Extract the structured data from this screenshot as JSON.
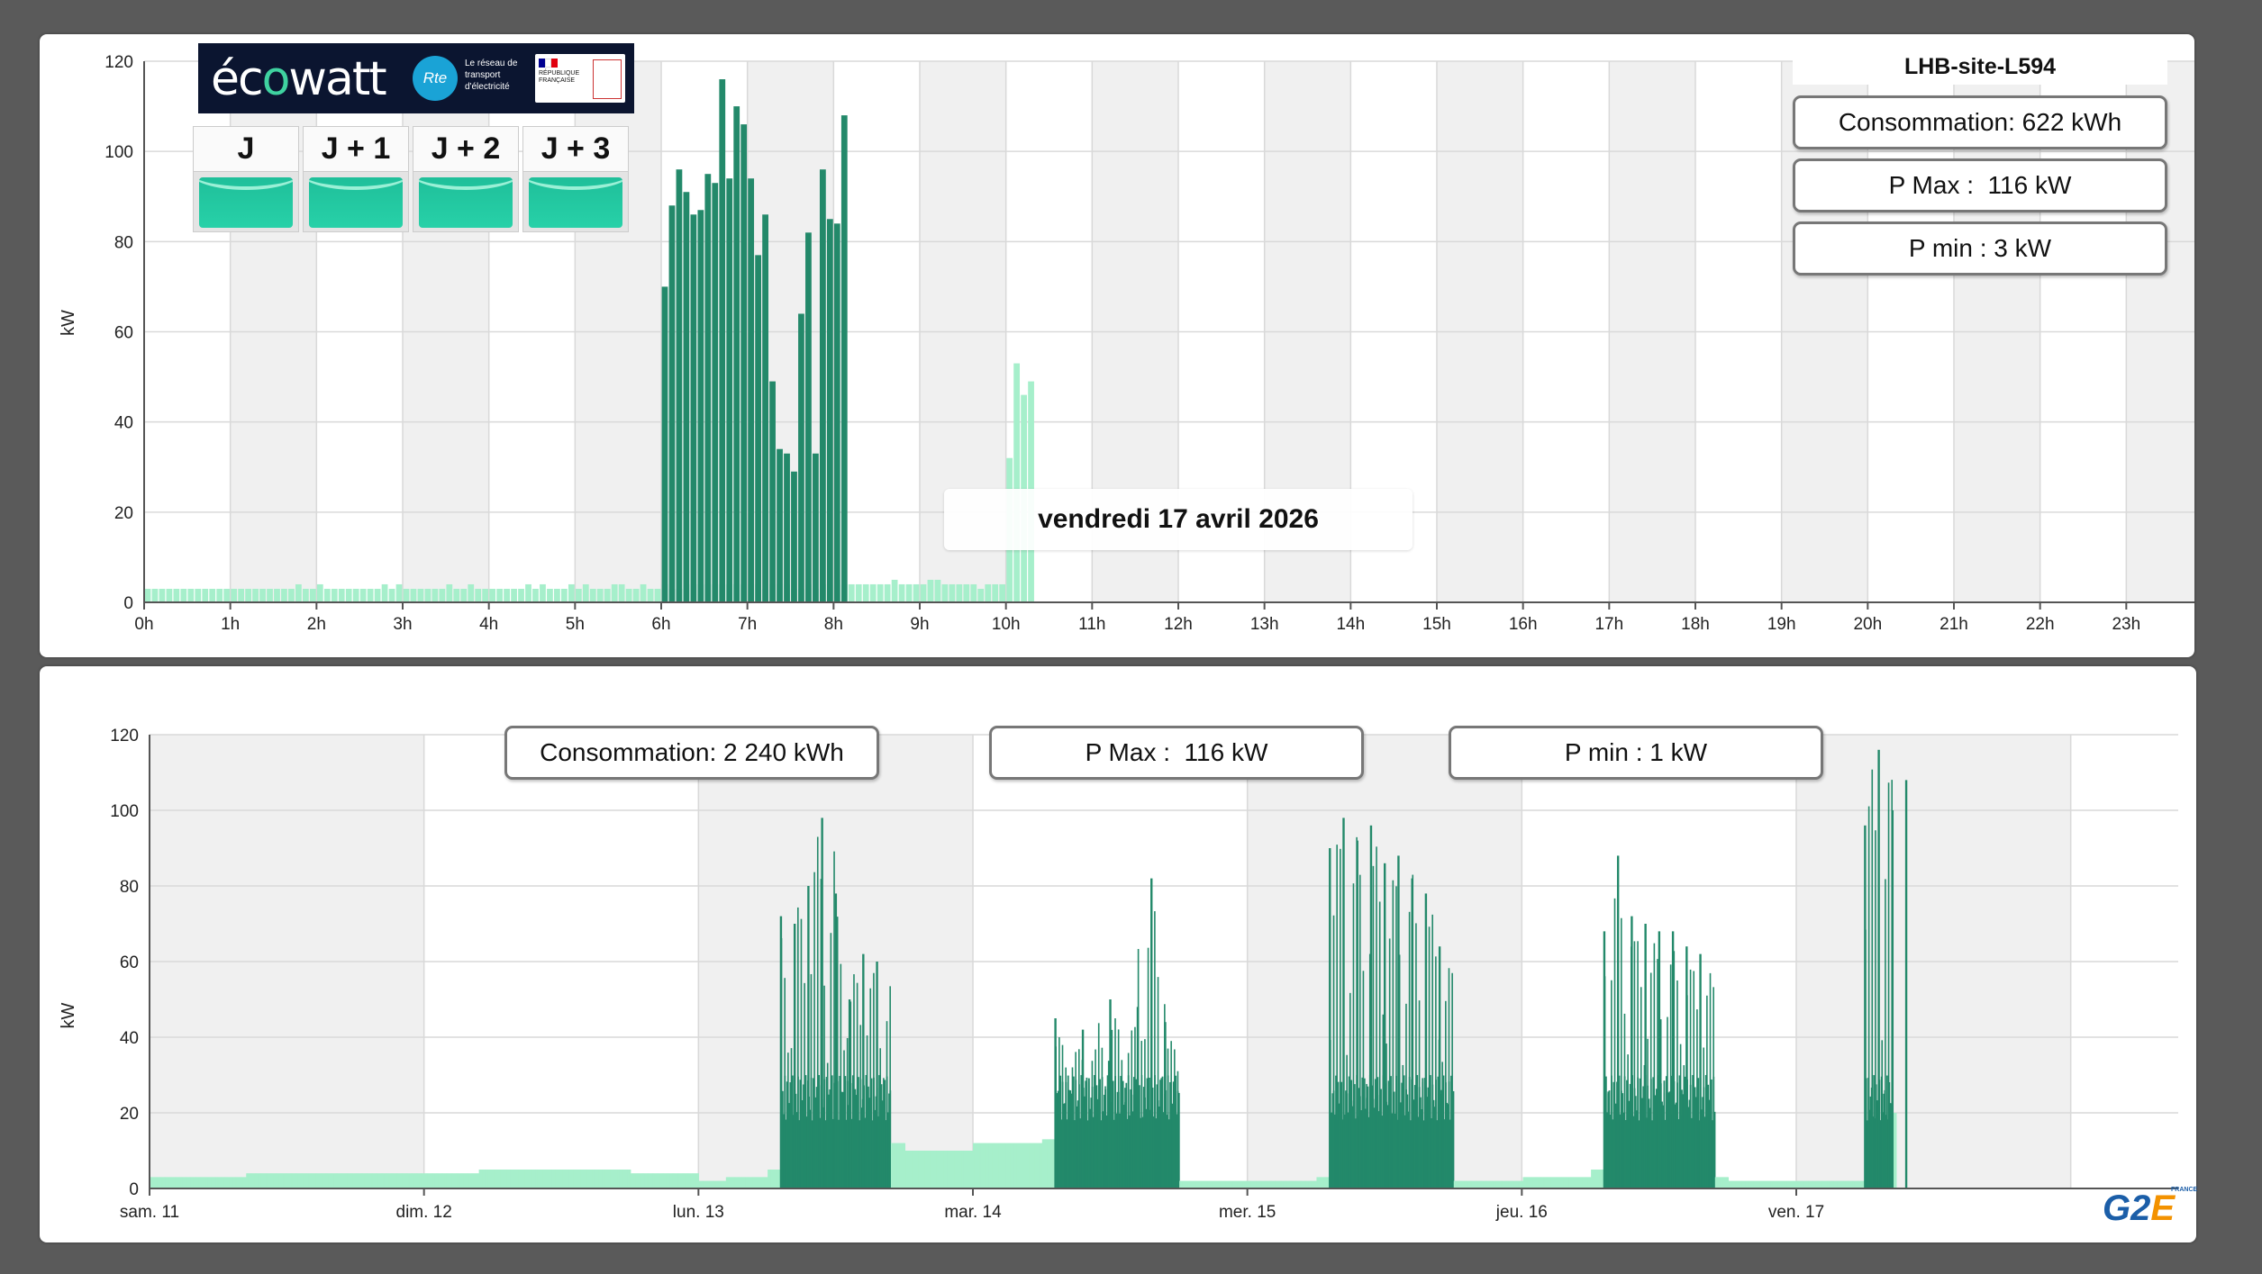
{
  "chart_data": [
    {
      "type": "bar",
      "ylabel": "kW",
      "xlabel": "",
      "ylim": [
        0,
        120
      ],
      "yticks": [
        "0",
        "20",
        "40",
        "60",
        "80",
        "100",
        "120"
      ],
      "xticks": [
        "0h",
        "1h",
        "2h",
        "3h",
        "4h",
        "5h",
        "6h",
        "7h",
        "8h",
        "9h",
        "10h",
        "11h",
        "12h",
        "13h",
        "14h",
        "15h",
        "16h",
        "17h",
        "18h",
        "19h",
        "20h",
        "21h",
        "22h",
        "23h",
        "0h"
      ],
      "interval_minutes": 5,
      "grid": true,
      "colors": {
        "light": "#a6efcb",
        "dark": "#23896a",
        "band": "#f0f0f0"
      },
      "series": [
        {
          "name": "light",
          "start_minutes": 0,
          "values": [
            3,
            3,
            3,
            3,
            3,
            3,
            3,
            3,
            3,
            3,
            3,
            3,
            3,
            3,
            3,
            3,
            3,
            3,
            3,
            3,
            3,
            4,
            3,
            3,
            4,
            3,
            3,
            3,
            3,
            3,
            3,
            3,
            3,
            4,
            3,
            4,
            3,
            3,
            3,
            3,
            3,
            3,
            4,
            3,
            3,
            4,
            3,
            3,
            3,
            3,
            3,
            3,
            3,
            4,
            3,
            4,
            3,
            3,
            3,
            4,
            3,
            4,
            3,
            3,
            3,
            4,
            4,
            3,
            3,
            4,
            3,
            3,
            4,
            3,
            3,
            4,
            4,
            4,
            4,
            4,
            4,
            4,
            4,
            4,
            4,
            4,
            3,
            4,
            4,
            4,
            3,
            3,
            4,
            3,
            4,
            4,
            5,
            4,
            4,
            4,
            4,
            4,
            4,
            4,
            5,
            4,
            4,
            4,
            4,
            5,
            5,
            4,
            4,
            4,
            4,
            4,
            3,
            4,
            4,
            4,
            32,
            53,
            46,
            49
          ]
        },
        {
          "name": "dark",
          "start_minutes": 360,
          "values": [
            70,
            88,
            96,
            91,
            86,
            87,
            95,
            93,
            116,
            94,
            110,
            106,
            94,
            77,
            86,
            49,
            34,
            33,
            29,
            64,
            82,
            33,
            96,
            85,
            84,
            108
          ]
        }
      ],
      "title": "vendredi 17 avril 2026"
    },
    {
      "type": "bar",
      "ylabel": "kW",
      "xlabel": "",
      "ylim": [
        0,
        120
      ],
      "yticks": [
        "0",
        "20",
        "40",
        "60",
        "80",
        "100",
        "120"
      ],
      "xticks": [
        "sam. 11",
        "dim. 12",
        "lun. 13",
        "mar. 14",
        "mer. 15",
        "jeu. 16",
        "ven. 17"
      ],
      "grid": true,
      "series": [
        {
          "name": "baseline",
          "points": [
            [
              0,
              3
            ],
            [
              0.35,
              4
            ],
            [
              0.6,
              4
            ],
            [
              0.9,
              4
            ],
            [
              1.2,
              5
            ],
            [
              1.5,
              5
            ],
            [
              1.75,
              4
            ],
            [
              2.0,
              2
            ],
            [
              2.1,
              3
            ],
            [
              2.25,
              5
            ],
            [
              2.3,
              20
            ],
            [
              2.7,
              12
            ],
            [
              2.75,
              10
            ],
            [
              3.0,
              12
            ],
            [
              3.25,
              13
            ],
            [
              3.3,
              14
            ],
            [
              3.7,
              14
            ],
            [
              3.75,
              2
            ],
            [
              4.0,
              2
            ],
            [
              4.25,
              3
            ],
            [
              4.3,
              20
            ],
            [
              4.7,
              20
            ],
            [
              4.75,
              2
            ],
            [
              5.0,
              3
            ],
            [
              5.25,
              5
            ],
            [
              5.3,
              20
            ],
            [
              5.7,
              3
            ],
            [
              5.75,
              2
            ],
            [
              6.0,
              2
            ],
            [
              6.25,
              2
            ],
            [
              6.3,
              20
            ]
          ]
        },
        {
          "name": "peaks",
          "points": [
            [
              2.3,
              72
            ],
            [
              2.35,
              70
            ],
            [
              2.4,
              80
            ],
            [
              2.45,
              98
            ],
            [
              2.5,
              78
            ],
            [
              2.55,
              50
            ],
            [
              2.6,
              62
            ],
            [
              2.65,
              60
            ],
            [
              3.3,
              45
            ],
            [
              3.4,
              42
            ],
            [
              3.5,
              50
            ],
            [
              3.6,
              48
            ],
            [
              3.65,
              82
            ],
            [
              3.7,
              44
            ],
            [
              4.3,
              90
            ],
            [
              4.35,
              98
            ],
            [
              4.4,
              92
            ],
            [
              4.45,
              96
            ],
            [
              4.5,
              86
            ],
            [
              4.55,
              88
            ],
            [
              4.6,
              82
            ],
            [
              4.65,
              78
            ],
            [
              4.7,
              64
            ],
            [
              5.3,
              68
            ],
            [
              5.35,
              88
            ],
            [
              5.4,
              72
            ],
            [
              5.45,
              70
            ],
            [
              5.5,
              68
            ],
            [
              5.55,
              68
            ],
            [
              5.6,
              64
            ],
            [
              5.65,
              62
            ],
            [
              6.25,
              96
            ],
            [
              6.3,
              116
            ],
            [
              6.35,
              100
            ],
            [
              6.4,
              108
            ]
          ]
        }
      ],
      "days": 7
    }
  ],
  "top": {
    "site_title": "LHB-site-L594",
    "consumption": "Consommation: 622 kWh",
    "pmax": "P Max :  116 kW",
    "pmin": "P min : 3 kW",
    "date": "vendredi 17 avril 2026"
  },
  "bottom": {
    "consumption": "Consommation: 2 240 kWh",
    "pmax": "P Max :  116 kW",
    "pmin": "P min : 1 kW"
  },
  "ecowatt": {
    "logo": "écowatt",
    "rte": "Rte",
    "rte_text": "Le réseau de transport d'électricité",
    "flag_text": "RÉPUBLIQUE FRANÇAISE",
    "days": [
      "J",
      "J + 1",
      "J + 2",
      "J + 3"
    ],
    "level_color": "#1fbf9a"
  },
  "g2e": {
    "logo": "G2E",
    "sub": "FRANCE"
  }
}
